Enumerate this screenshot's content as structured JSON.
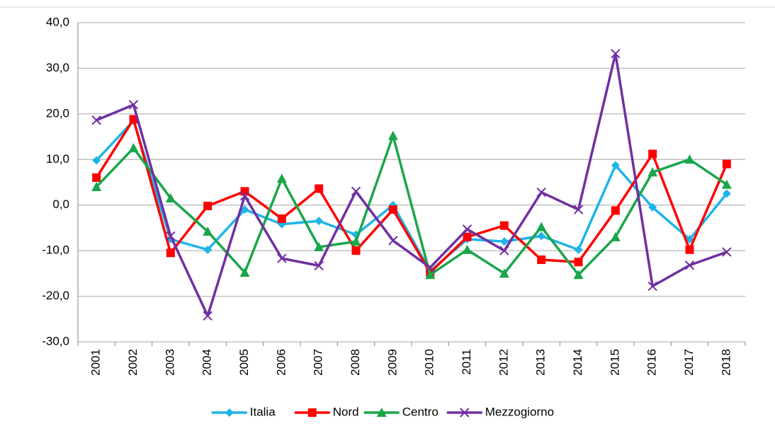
{
  "chart_data": {
    "type": "line",
    "categories": [
      "2001",
      "2002",
      "2003",
      "2004",
      "2005",
      "2006",
      "2007",
      "2008",
      "2009",
      "2010",
      "2011",
      "2012",
      "2013",
      "2014",
      "2015",
      "2016",
      "2017",
      "2018"
    ],
    "series": [
      {
        "name": "Italia",
        "color": "#1fb4e8",
        "marker": "diamond",
        "values": [
          9.8,
          18.5,
          -7.5,
          -9.8,
          -1.0,
          -4.2,
          -3.5,
          -6.5,
          0.0,
          -14.5,
          -7.5,
          -8.0,
          -6.8,
          -9.8,
          8.7,
          -0.5,
          -7.5,
          2.5
        ]
      },
      {
        "name": "Nord",
        "color": "#ff0000",
        "marker": "square",
        "values": [
          6.0,
          18.8,
          -10.5,
          -0.2,
          3.0,
          -3.0,
          3.6,
          -10.0,
          -1.0,
          -14.8,
          -7.0,
          -4.5,
          -12.0,
          -12.5,
          -1.2,
          11.2,
          -9.8,
          9.0
        ]
      },
      {
        "name": "Centro",
        "color": "#1aa64a",
        "marker": "triangle",
        "values": [
          4.0,
          12.5,
          1.5,
          -5.8,
          -14.8,
          5.8,
          -9.2,
          -8.0,
          15.2,
          -15.3,
          -9.8,
          -15.0,
          -4.8,
          -15.3,
          -7.0,
          7.2,
          10.0,
          4.5
        ]
      },
      {
        "name": "Mezzogiorno",
        "color": "#7030a0",
        "marker": "x",
        "values": [
          18.6,
          22.0,
          -6.8,
          -24.3,
          2.0,
          -11.7,
          -13.3,
          3.0,
          -7.8,
          -13.7,
          -5.3,
          -10.0,
          2.8,
          -1.0,
          33.2,
          -17.8,
          -13.2,
          -10.3
        ]
      }
    ],
    "ylim": [
      -30,
      40
    ],
    "yticks": [
      {
        "value": -30,
        "label": "-30,0"
      },
      {
        "value": -20,
        "label": "-20,0"
      },
      {
        "value": -10,
        "label": "-10,0"
      },
      {
        "value": 0,
        "label": "0,0"
      },
      {
        "value": 10,
        "label": "10,0"
      },
      {
        "value": 20,
        "label": "20,0"
      },
      {
        "value": 30,
        "label": "30,0"
      },
      {
        "value": 40,
        "label": "40,0"
      }
    ],
    "grid": true,
    "legend": "bottom"
  }
}
